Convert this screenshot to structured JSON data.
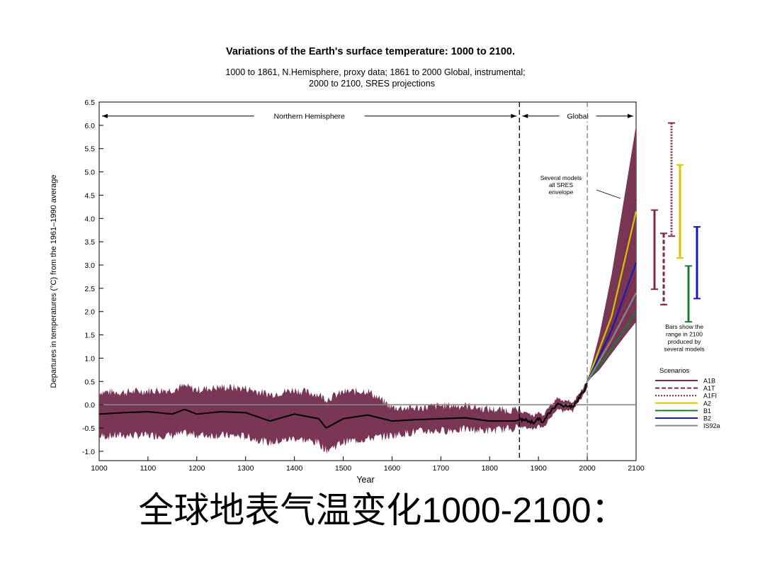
{
  "chart_data": {
    "type": "area",
    "title": "Variations of the Earth's surface temperature: 1000 to 2100.",
    "subtitle_line1": "1000 to 1861, N.Hemisphere, proxy data; 1861 to 2000 Global, instrumental;",
    "subtitle_line2": "2000 to 2100, SRES projections",
    "xlabel": "Year",
    "ylabel": "Departures in temperatures (°C) from the 1961–1990 average",
    "xlim": [
      1000,
      2100
    ],
    "ylim": [
      -1.2,
      6.5
    ],
    "x_ticks": [
      1000,
      1100,
      1200,
      1300,
      1400,
      1500,
      1600,
      1700,
      1800,
      1900,
      2000,
      2100
    ],
    "y_ticks": [
      -1.0,
      -0.5,
      0.0,
      0.5,
      1.0,
      1.5,
      2.0,
      2.5,
      3.0,
      3.5,
      4.0,
      4.5,
      5.0,
      5.5,
      6.0,
      6.5
    ],
    "y_tick_labels": [
      "-1.0",
      "-0.5",
      "0.0",
      "0.5",
      "1.0",
      "1.5",
      "2.0",
      "2.5",
      "3.0",
      "3.5",
      "4.0",
      "4.5",
      "5.0",
      "5.5",
      "6.0",
      "6.5"
    ],
    "region_labels": {
      "nh": "Northern Hemisphere",
      "global": "Global"
    },
    "region_bounds": {
      "nh_end": 1861,
      "global_start": 2000
    },
    "envelope_annotation": [
      "Several models",
      "all SRES",
      "envelope"
    ],
    "bars_annotation": [
      "Bars show the",
      "range in 2100",
      "produced by",
      "several models"
    ],
    "proxy_series": {
      "name": "N.Hemisphere proxy",
      "x": [
        1000,
        1050,
        1100,
        1150,
        1175,
        1200,
        1250,
        1300,
        1350,
        1400,
        1450,
        1465,
        1500,
        1550,
        1600,
        1650,
        1700,
        1750,
        1800,
        1850,
        1861
      ],
      "mean": [
        -0.2,
        -0.17,
        -0.15,
        -0.2,
        -0.1,
        -0.2,
        -0.15,
        -0.17,
        -0.35,
        -0.2,
        -0.3,
        -0.5,
        -0.3,
        -0.22,
        -0.35,
        -0.32,
        -0.3,
        -0.28,
        -0.35,
        -0.35,
        -0.33
      ],
      "lower": [
        -0.68,
        -0.66,
        -0.66,
        -0.66,
        -0.62,
        -0.65,
        -0.66,
        -0.68,
        -0.82,
        -0.72,
        -0.82,
        -0.98,
        -0.8,
        -0.73,
        -0.66,
        -0.58,
        -0.56,
        -0.53,
        -0.56,
        -0.5,
        -0.48
      ],
      "upper": [
        0.28,
        0.27,
        0.3,
        0.32,
        0.4,
        0.32,
        0.38,
        0.35,
        0.22,
        0.32,
        0.22,
        0.12,
        0.27,
        0.3,
        -0.06,
        -0.07,
        -0.02,
        -0.02,
        -0.1,
        -0.12,
        -0.12
      ]
    },
    "instrumental_series": {
      "name": "Global instrumental",
      "x": [
        1861,
        1870,
        1880,
        1890,
        1900,
        1910,
        1920,
        1930,
        1940,
        1950,
        1960,
        1970,
        1980,
        1990,
        2000
      ],
      "mean": [
        -0.35,
        -0.32,
        -0.35,
        -0.38,
        -0.3,
        -0.38,
        -0.2,
        -0.08,
        0.05,
        -0.05,
        0.0,
        -0.05,
        0.1,
        0.25,
        0.45
      ],
      "lower": [
        -0.5,
        -0.48,
        -0.5,
        -0.52,
        -0.46,
        -0.5,
        -0.34,
        -0.2,
        -0.06,
        -0.16,
        -0.1,
        -0.14,
        0.02,
        0.17,
        0.37
      ],
      "upper": [
        -0.2,
        -0.17,
        -0.2,
        -0.24,
        -0.15,
        -0.25,
        -0.06,
        0.04,
        0.16,
        0.06,
        0.1,
        0.04,
        0.18,
        0.33,
        0.53
      ]
    },
    "projection_envelope": {
      "x": [
        2000,
        2025,
        2050,
        2075,
        2100
      ],
      "lower": [
        0.5,
        0.75,
        1.1,
        1.45,
        1.78
      ],
      "upper": [
        0.5,
        1.5,
        2.8,
        4.4,
        6.0
      ]
    },
    "scenarios_title": "Scenarios",
    "scenarios": [
      {
        "name": "A1B",
        "color": "#7a2a4a",
        "dash": "solid",
        "x": [
          2000,
          2050,
          2100
        ],
        "values": [
          0.5,
          1.6,
          2.8
        ],
        "bar": [
          2.48,
          4.18
        ]
      },
      {
        "name": "A1T",
        "color": "#7a2a4a",
        "dash": "dashed",
        "x": [
          2000,
          2050,
          2100
        ],
        "values": [
          0.5,
          1.5,
          2.5
        ],
        "bar": [
          2.15,
          3.68
        ]
      },
      {
        "name": "A1FI",
        "color": "#7a2a4a",
        "dash": "dotted",
        "x": [
          2000,
          2050,
          2100
        ],
        "values": [
          0.5,
          1.9,
          4.4
        ],
        "bar": [
          3.62,
          6.05
        ]
      },
      {
        "name": "A2",
        "color": "#d8c400",
        "dash": "solid",
        "x": [
          2000,
          2050,
          2100
        ],
        "values": [
          0.5,
          1.9,
          4.15
        ],
        "bar": [
          3.15,
          5.15
        ]
      },
      {
        "name": "B1",
        "color": "#1a7a30",
        "dash": "solid",
        "x": [
          2000,
          2050,
          2100
        ],
        "values": [
          0.5,
          1.2,
          2.0
        ],
        "bar": [
          1.78,
          2.98
        ]
      },
      {
        "name": "B2",
        "color": "#1a1ab0",
        "dash": "solid",
        "x": [
          2000,
          2050,
          2100
        ],
        "values": [
          0.5,
          1.6,
          3.05
        ],
        "bar": [
          2.28,
          3.82
        ]
      },
      {
        "name": "IS92a",
        "color": "#888888",
        "dash": "solid",
        "x": [
          2000,
          2050,
          2100
        ],
        "values": [
          0.5,
          1.4,
          2.4
        ],
        "bar": null
      }
    ],
    "colors": {
      "envelope": "#7a3655",
      "mean_line": "#000000",
      "zero_line": "#888888"
    },
    "grid": false,
    "legend_placement": "right"
  },
  "caption": {
    "title_cn": "全球地表气温变化",
    "title_range": "1000-2100",
    "title_punct": "："
  }
}
